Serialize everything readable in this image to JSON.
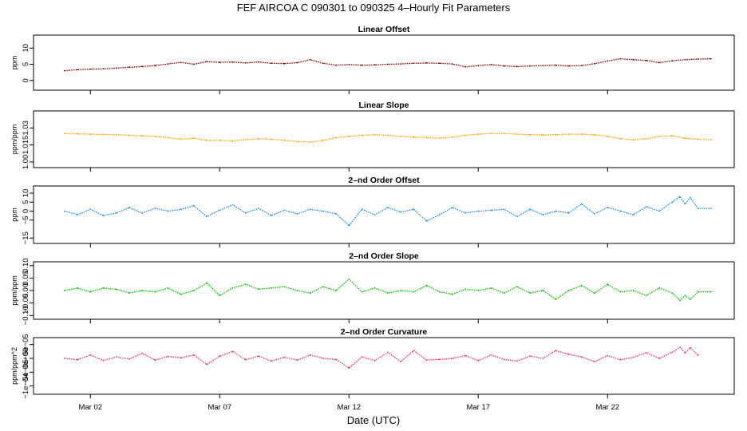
{
  "figure": {
    "title": "FEF   AIRCOA C   090301 to 090325   4–Hourly Fit Parameters",
    "xlabel": "Date (UTC)"
  },
  "chart_data": [
    {
      "type": "line",
      "title": "Linear Offset",
      "ylabel": "ppm",
      "color": "#8b0000",
      "ylim": [
        -3,
        14
      ],
      "yticks": [
        0,
        5,
        10
      ],
      "ytick_labels": [
        "0",
        "5",
        "10"
      ],
      "x": [
        0.0,
        0.5,
        1.0,
        1.5,
        2.0,
        2.5,
        3.0,
        3.5,
        4.0,
        4.5,
        5.0,
        5.5,
        6.0,
        6.5,
        7.0,
        7.5,
        8.0,
        8.5,
        9.0,
        9.5,
        10.0,
        10.5,
        11.0,
        11.5,
        12.0,
        12.5,
        13.0,
        13.5,
        14.0,
        14.5,
        15.0,
        15.5,
        16.0,
        16.5,
        17.0,
        17.5,
        18.0,
        18.5,
        19.0,
        19.5,
        20.0,
        20.5,
        21.0,
        21.5,
        22.0,
        22.5,
        23.0,
        23.5,
        24.0,
        24.5,
        25.0
      ],
      "values": [
        3.0,
        3.3,
        3.5,
        3.6,
        3.8,
        4.1,
        4.3,
        4.6,
        5.1,
        5.6,
        5.0,
        5.8,
        5.6,
        5.7,
        5.4,
        5.7,
        5.3,
        5.2,
        5.5,
        6.4,
        5.3,
        4.7,
        4.9,
        4.7,
        4.8,
        5.0,
        5.1,
        5.3,
        5.4,
        5.3,
        5.1,
        4.2,
        4.6,
        4.9,
        4.5,
        4.3,
        4.5,
        4.6,
        4.7,
        4.5,
        4.6,
        5.2,
        6.0,
        6.7,
        6.4,
        6.2,
        5.5,
        6.1,
        6.4,
        6.6,
        6.7
      ]
    },
    {
      "type": "line",
      "title": "Linear Slope",
      "ylabel": "ppm/ppm",
      "color": "#ffa500",
      "ylim": [
        0.995,
        1.045
      ],
      "yticks": [
        1.0,
        1.015,
        1.03
      ],
      "ytick_labels": [
        "1.00",
        "1.015",
        "1.03"
      ],
      "x": [
        0.0,
        0.5,
        1.0,
        1.5,
        2.0,
        2.5,
        3.0,
        3.5,
        4.0,
        4.5,
        5.0,
        5.5,
        6.0,
        6.5,
        7.0,
        7.5,
        8.0,
        8.5,
        9.0,
        9.5,
        10.0,
        10.5,
        11.0,
        11.5,
        12.0,
        12.5,
        13.0,
        13.5,
        14.0,
        14.5,
        15.0,
        15.5,
        16.0,
        16.5,
        17.0,
        17.5,
        18.0,
        18.5,
        19.0,
        19.5,
        20.0,
        20.5,
        21.0,
        21.5,
        22.0,
        22.5,
        23.0,
        23.5,
        24.0,
        24.5,
        25.0
      ],
      "values": [
        1.025,
        1.0248,
        1.0245,
        1.0243,
        1.024,
        1.0235,
        1.023,
        1.0225,
        1.0215,
        1.02,
        1.021,
        1.019,
        1.019,
        1.0185,
        1.0195,
        1.0205,
        1.02,
        1.019,
        1.018,
        1.0175,
        1.019,
        1.0215,
        1.0225,
        1.0235,
        1.024,
        1.0235,
        1.0225,
        1.022,
        1.0215,
        1.021,
        1.022,
        1.0235,
        1.0245,
        1.025,
        1.025,
        1.0245,
        1.024,
        1.0238,
        1.024,
        1.0245,
        1.0245,
        1.024,
        1.0225,
        1.0205,
        1.0195,
        1.0205,
        1.0225,
        1.023,
        1.021,
        1.02,
        1.0195
      ]
    },
    {
      "type": "line",
      "title": "2–nd Order Offset",
      "ylabel": "ppm",
      "color": "#1e90ff",
      "ylim": [
        -18,
        14
      ],
      "yticks": [
        -15,
        -5,
        0,
        5,
        10
      ],
      "ytick_labels": [
        "−15",
        "−5",
        "0",
        "5",
        "10"
      ],
      "x": [
        0.0,
        0.5,
        1.0,
        1.5,
        2.0,
        2.5,
        3.0,
        3.5,
        4.0,
        4.5,
        5.0,
        5.5,
        6.0,
        6.5,
        7.0,
        7.5,
        8.0,
        8.5,
        9.0,
        9.5,
        10.0,
        10.5,
        11.0,
        11.5,
        12.0,
        12.5,
        13.0,
        13.5,
        14.0,
        14.5,
        15.0,
        15.5,
        16.0,
        16.5,
        17.0,
        17.5,
        18.0,
        18.5,
        19.0,
        19.5,
        20.0,
        20.5,
        21.0,
        21.5,
        22.0,
        22.5,
        23.0,
        23.5,
        23.8,
        24.0,
        24.2,
        24.5,
        25.0
      ],
      "values": [
        0.0,
        -2.0,
        1.0,
        -2.5,
        -1.0,
        2.0,
        -1.0,
        1.5,
        0.0,
        1.0,
        3.0,
        -3.0,
        0.5,
        3.5,
        -1.0,
        1.5,
        -2.5,
        0.5,
        -1.5,
        1.0,
        0.0,
        -1.5,
        -8.0,
        1.0,
        -2.0,
        2.0,
        -0.5,
        1.0,
        -5.5,
        -2.0,
        2.0,
        -1.0,
        0.0,
        0.5,
        1.0,
        -3.0,
        1.0,
        -2.0,
        0.0,
        -1.0,
        4.0,
        -1.5,
        2.0,
        0.0,
        -2.0,
        2.5,
        0.0,
        5.0,
        8.0,
        4.0,
        7.5,
        1.5,
        1.5
      ]
    },
    {
      "type": "line",
      "title": "2–nd Order Slope",
      "ylabel": "ppm/ppm",
      "color": "#00cc00",
      "ylim": [
        -0.115,
        0.115
      ],
      "yticks": [
        -0.1,
        -0.05,
        0.0,
        0.05,
        0.1
      ],
      "ytick_labels": [
        "−0.10",
        "−0.05",
        "0.00",
        "0.05",
        "0.10"
      ],
      "x": [
        0.0,
        0.5,
        1.0,
        1.5,
        2.0,
        2.5,
        3.0,
        3.5,
        4.0,
        4.5,
        5.0,
        5.5,
        6.0,
        6.5,
        7.0,
        7.5,
        8.0,
        8.5,
        9.0,
        9.5,
        10.0,
        10.5,
        11.0,
        11.5,
        12.0,
        12.5,
        13.0,
        13.5,
        14.0,
        14.5,
        15.0,
        15.5,
        16.0,
        16.5,
        17.0,
        17.5,
        18.0,
        18.5,
        19.0,
        19.5,
        20.0,
        20.5,
        21.0,
        21.5,
        22.0,
        22.5,
        23.0,
        23.5,
        23.8,
        24.0,
        24.2,
        24.5,
        25.0
      ],
      "values": [
        0.0,
        0.01,
        -0.005,
        0.01,
        0.005,
        -0.01,
        0.0,
        -0.005,
        0.01,
        -0.015,
        0.0,
        0.03,
        -0.02,
        0.01,
        0.025,
        0.005,
        0.01,
        0.015,
        0.0,
        -0.01,
        0.015,
        0.0,
        0.045,
        -0.005,
        0.01,
        -0.01,
        0.0,
        -0.005,
        0.02,
        -0.005,
        -0.015,
        0.005,
        0.0,
        0.01,
        -0.01,
        0.015,
        -0.01,
        0.0,
        -0.035,
        0.0,
        0.02,
        -0.01,
        0.025,
        -0.005,
        0.0,
        -0.02,
        0.01,
        -0.01,
        -0.04,
        -0.02,
        -0.035,
        -0.005,
        -0.005
      ]
    },
    {
      "type": "line",
      "title": "2–nd Order Curvature",
      "ylabel": "ppm/ppm^2",
      "color": "#ff3366",
      "ylim": [
        -0.00013,
        7.5e-05
      ],
      "yticks": [
        -0.0001,
        -5e-05,
        0.0,
        5e-05
      ],
      "ytick_labels": [
        "−1e−04",
        "−5e−05",
        "0e+00",
        "5e−05"
      ],
      "x": [
        0.0,
        0.5,
        1.0,
        1.5,
        2.0,
        2.5,
        3.0,
        3.5,
        4.0,
        4.5,
        5.0,
        5.5,
        6.0,
        6.5,
        7.0,
        7.5,
        8.0,
        8.5,
        9.0,
        9.5,
        10.0,
        10.5,
        11.0,
        11.5,
        12.0,
        12.5,
        13.0,
        13.5,
        14.0,
        14.5,
        15.0,
        15.5,
        16.0,
        16.5,
        17.0,
        17.5,
        18.0,
        18.5,
        19.0,
        19.5,
        20.0,
        20.5,
        21.0,
        21.5,
        22.0,
        22.5,
        23.0,
        23.5,
        23.8,
        24.0,
        24.2,
        24.5
      ],
      "values": [
        0.0,
        -5e-06,
        1.2e-05,
        -8e-06,
        5e-06,
        -2e-06,
        1.8e-05,
        -6e-06,
        7e-06,
        2e-06,
        1.2e-05,
        -2.2e-05,
        8e-06,
        2.5e-05,
        -5e-06,
        8e-06,
        -1e-05,
        4e-06,
        -6e-06,
        1.2e-05,
        0.0,
        -4e-06,
        -3.5e-05,
        5e-06,
        -8e-06,
        2.2e-05,
        -1.2e-05,
        2.8e-05,
        -6e-06,
        -4e-06,
        0.0,
        1e-05,
        -8e-06,
        1.2e-05,
        -4e-06,
        -1e-05,
        8e-06,
        0.0,
        2.8e-05,
        1.5e-05,
        5e-06,
        -1.2e-05,
        1e-05,
        -5e-06,
        4e-06,
        2e-05,
        0.0,
        2.2e-05,
        4e-05,
        2e-05,
        3.8e-05,
        1.2e-05
      ]
    }
  ],
  "x_axis": {
    "xlim": [
      -1.2,
      25.9
    ],
    "ticks": [
      1,
      6,
      11,
      16,
      21
    ],
    "tick_labels": [
      "Mar 02",
      "Mar 07",
      "Mar 12",
      "Mar 17",
      "Mar 22"
    ]
  }
}
